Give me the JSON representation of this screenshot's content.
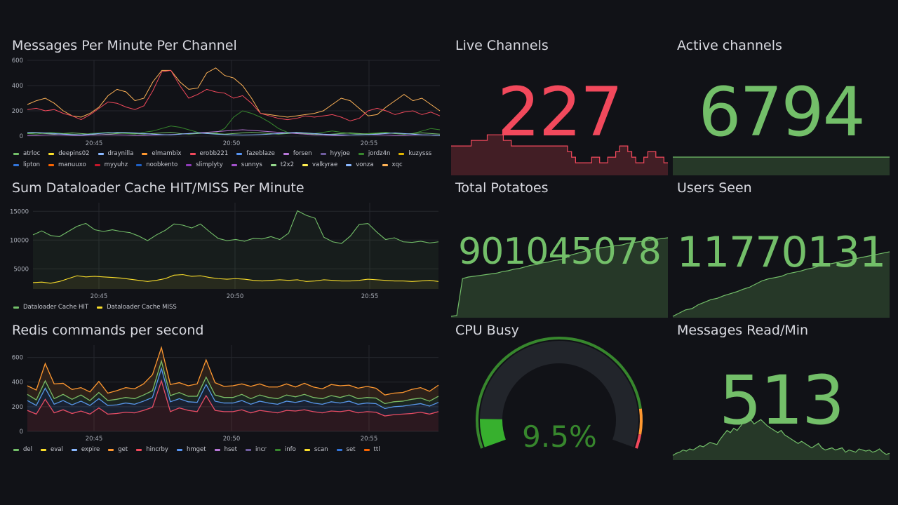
{
  "colors": {
    "green": "#73bf69",
    "red": "#f2495c",
    "yellow": "#fade2a",
    "blue": "#8ab8ff",
    "orange": "#ff9830",
    "grid": "#25272d",
    "text": "#ccccdc",
    "bg": "#111217"
  },
  "messages_panel": {
    "title": "Messages Per Minute Per Channel",
    "legend": [
      {
        "label": "atrloc",
        "color": "#73bf69"
      },
      {
        "label": "deepins02",
        "color": "#fade2a"
      },
      {
        "label": "draynilla",
        "color": "#8ab8ff"
      },
      {
        "label": "elmambix",
        "color": "#ff9830"
      },
      {
        "label": "erobb221",
        "color": "#f2495c"
      },
      {
        "label": "fazeblaze",
        "color": "#5794f2"
      },
      {
        "label": "forsen",
        "color": "#b877d9"
      },
      {
        "label": "hyyjoe",
        "color": "#705da0"
      },
      {
        "label": "jordz4n",
        "color": "#37872d"
      },
      {
        "label": "kuzysss",
        "color": "#e0b400"
      },
      {
        "label": "lipton",
        "color": "#3274d9"
      },
      {
        "label": "manuuxo",
        "color": "#fa6400"
      },
      {
        "label": "myyuhz",
        "color": "#c4162a"
      },
      {
        "label": "noobkento",
        "color": "#1f60c4"
      },
      {
        "label": "slimplyty",
        "color": "#8f3bb8"
      },
      {
        "label": "sunnys",
        "color": "#a352cc"
      },
      {
        "label": "t2x2",
        "color": "#96d98d"
      },
      {
        "label": "valkyrae",
        "color": "#ffee52"
      },
      {
        "label": "vonza",
        "color": "#8ab8ff"
      },
      {
        "label": "xqc",
        "color": "#ffb357"
      }
    ],
    "chart_data": {
      "type": "line",
      "title": "Messages Per Minute Per Channel",
      "x_ticks": [
        "20:45",
        "20:50",
        "20:55"
      ],
      "y_ticks": [
        "600",
        "400",
        "200",
        "0"
      ],
      "ylim": [
        0,
        600
      ],
      "series": [
        {
          "name": "xqc",
          "color": "#ffb357",
          "values": [
            250,
            280,
            300,
            260,
            200,
            160,
            150,
            180,
            230,
            320,
            370,
            350,
            280,
            300,
            430,
            520,
            520,
            430,
            370,
            380,
            500,
            540,
            480,
            460,
            400,
            300,
            180,
            170,
            160,
            150,
            160,
            170,
            180,
            200,
            250,
            300,
            280,
            220,
            160,
            170,
            230,
            280,
            330,
            280,
            300,
            250,
            200
          ]
        },
        {
          "name": "erobb221",
          "color": "#f2495c",
          "values": [
            210,
            220,
            200,
            210,
            180,
            160,
            130,
            170,
            220,
            270,
            260,
            230,
            210,
            240,
            360,
            510,
            520,
            400,
            300,
            330,
            370,
            350,
            340,
            300,
            320,
            260,
            180,
            160,
            140,
            130,
            140,
            160,
            150,
            160,
            170,
            150,
            120,
            140,
            200,
            220,
            200,
            170,
            190,
            200,
            170,
            190,
            160
          ]
        },
        {
          "name": "jordz4n",
          "color": "#37872d",
          "values": [
            20,
            15,
            25,
            30,
            20,
            15,
            10,
            20,
            25,
            30,
            25,
            20,
            15,
            30,
            40,
            60,
            80,
            70,
            50,
            30,
            20,
            25,
            60,
            150,
            200,
            180,
            150,
            110,
            60,
            30,
            20,
            15,
            20,
            30,
            40,
            30,
            20,
            15,
            20,
            25,
            30,
            20,
            15,
            20,
            40,
            60,
            50
          ]
        },
        {
          "name": "atrloc",
          "color": "#73bf69",
          "values": [
            20,
            25,
            20,
            15,
            20,
            25,
            20,
            15,
            10,
            15,
            20,
            25,
            20,
            15,
            20,
            25,
            30,
            20,
            15,
            20,
            25,
            20,
            15,
            20,
            25,
            30,
            25,
            20,
            15,
            20,
            25,
            20,
            15,
            10,
            15,
            20,
            25,
            20,
            15,
            20,
            25,
            20,
            15,
            20,
            25,
            20,
            15
          ]
        },
        {
          "name": "forsen",
          "color": "#b877d9",
          "values": [
            5,
            5,
            8,
            10,
            8,
            5,
            5,
            8,
            10,
            12,
            10,
            8,
            5,
            5,
            8,
            10,
            12,
            15,
            20,
            25,
            30,
            35,
            40,
            45,
            50,
            45,
            40,
            35,
            30,
            25,
            20,
            15,
            10,
            8,
            5,
            5,
            8,
            10,
            12,
            10,
            8,
            5,
            5,
            8,
            10,
            8,
            5
          ]
        },
        {
          "name": "draynilla",
          "color": "#8ab8ff",
          "values": [
            30,
            28,
            25,
            20,
            15,
            12,
            10,
            15,
            20,
            25,
            30,
            28,
            25,
            20,
            15,
            12,
            10,
            15,
            20,
            25,
            20,
            15,
            12,
            10,
            8,
            10,
            12,
            15,
            20,
            25,
            30,
            25,
            20,
            15,
            12,
            10,
            8,
            10,
            12,
            15,
            20,
            25,
            20,
            15,
            10,
            8,
            5
          ]
        }
      ]
    }
  },
  "cache_panel": {
    "title": "Sum Dataloader Cache HIT/MISS Per Minute",
    "legend": [
      {
        "label": "Dataloader Cache HIT",
        "color": "#73bf69"
      },
      {
        "label": "Dataloader Cache MISS",
        "color": "#fade2a"
      }
    ],
    "chart_data": {
      "type": "area",
      "title": "Sum Dataloader Cache HIT/MISS Per Minute",
      "x_ticks": [
        "20:45",
        "20:50",
        "20:55"
      ],
      "y_ticks": [
        "15000",
        "10000",
        "5000"
      ],
      "ylim": [
        1500,
        16500
      ],
      "series": [
        {
          "name": "Dataloader Cache HIT",
          "color": "#73bf69",
          "values": [
            10900,
            11600,
            10800,
            10600,
            11500,
            12400,
            12900,
            11800,
            11500,
            11800,
            11500,
            11300,
            10700,
            9900,
            10900,
            11700,
            12800,
            12600,
            12100,
            12800,
            11500,
            10300,
            9900,
            10100,
            9800,
            10300,
            10200,
            10600,
            10100,
            11200,
            15100,
            14300,
            13800,
            10500,
            9700,
            9400,
            10700,
            12700,
            12900,
            11400,
            10100,
            10400,
            9700,
            9600,
            9800,
            9500,
            9700
          ]
        },
        {
          "name": "Dataloader Cache MISS",
          "color": "#fade2a",
          "values": [
            2600,
            2700,
            2500,
            2800,
            3300,
            3800,
            3600,
            3700,
            3600,
            3500,
            3400,
            3200,
            3000,
            2800,
            3000,
            3300,
            3900,
            4000,
            3700,
            3800,
            3500,
            3300,
            3200,
            3300,
            3200,
            3000,
            2900,
            3000,
            3100,
            3000,
            3100,
            2800,
            2900,
            3100,
            3000,
            2900,
            2900,
            3000,
            3200,
            3100,
            3000,
            2900,
            2900,
            2800,
            2900,
            3000,
            2800
          ]
        }
      ]
    }
  },
  "redis_panel": {
    "title": "Redis commands per second",
    "legend": [
      {
        "label": "del",
        "color": "#73bf69"
      },
      {
        "label": "eval",
        "color": "#fade2a"
      },
      {
        "label": "expire",
        "color": "#8ab8ff"
      },
      {
        "label": "get",
        "color": "#ff9830"
      },
      {
        "label": "hincrby",
        "color": "#f2495c"
      },
      {
        "label": "hmget",
        "color": "#5794f2"
      },
      {
        "label": "hset",
        "color": "#b877d9"
      },
      {
        "label": "incr",
        "color": "#705da0"
      },
      {
        "label": "info",
        "color": "#37872d"
      },
      {
        "label": "scan",
        "color": "#fade2a"
      },
      {
        "label": "set",
        "color": "#3274d9"
      },
      {
        "label": "ttl",
        "color": "#fa6400"
      }
    ],
    "chart_data": {
      "type": "area",
      "title": "Redis commands per second",
      "stacked": true,
      "x_ticks": [
        "20:45",
        "20:50",
        "20:55"
      ],
      "y_ticks": [
        "600",
        "400",
        "200",
        "0"
      ],
      "ylim": [
        0,
        700
      ],
      "series": [
        {
          "name": "hincrby",
          "color": "#f2495c",
          "values": [
            170,
            140,
            260,
            150,
            175,
            145,
            165,
            140,
            190,
            140,
            145,
            155,
            150,
            170,
            195,
            410,
            160,
            190,
            170,
            160,
            290,
            170,
            160,
            160,
            175,
            150,
            170,
            160,
            150,
            170,
            165,
            175,
            160,
            150,
            165,
            160,
            170,
            150,
            160,
            155,
            125,
            135,
            140,
            145,
            155,
            140,
            160
          ]
        },
        {
          "name": "hmget",
          "color": "#5794f2",
          "values": [
            80,
            70,
            90,
            70,
            75,
            70,
            80,
            70,
            75,
            70,
            70,
            75,
            70,
            75,
            80,
            100,
            80,
            75,
            70,
            75,
            90,
            75,
            70,
            70,
            75,
            70,
            75,
            70,
            70,
            75,
            70,
            75,
            70,
            70,
            75,
            70,
            75,
            70,
            70,
            70,
            60,
            65,
            65,
            70,
            70,
            65,
            75
          ]
        },
        {
          "name": "del",
          "color": "#73bf69",
          "values": [
            50,
            45,
            60,
            45,
            50,
            45,
            50,
            40,
            50,
            40,
            45,
            45,
            45,
            50,
            55,
            60,
            50,
            50,
            45,
            50,
            60,
            50,
            45,
            45,
            50,
            45,
            50,
            45,
            45,
            50,
            45,
            50,
            45,
            45,
            50,
            45,
            50,
            45,
            45,
            45,
            40,
            40,
            40,
            45,
            45,
            40,
            50
          ]
        },
        {
          "name": "get",
          "color": "#ff9830",
          "values": [
            70,
            80,
            140,
            120,
            90,
            80,
            60,
            70,
            90,
            60,
            70,
            80,
            80,
            90,
            130,
            110,
            90,
            80,
            85,
            100,
            140,
            100,
            90,
            95,
            85,
            100,
            90,
            85,
            95,
            90,
            80,
            90,
            85,
            80,
            90,
            95,
            80,
            85,
            90,
            80,
            70,
            70,
            70,
            80,
            85,
            80,
            90
          ]
        }
      ]
    }
  },
  "live_channels": {
    "title": "Live Channels",
    "value": "227",
    "chart_data": {
      "type": "area",
      "series": [
        {
          "name": "Live Channels",
          "values": [
            5,
            5,
            5,
            5,
            5,
            6,
            6,
            6,
            6,
            7,
            7,
            7,
            7,
            6,
            6,
            5,
            5,
            5,
            5,
            5,
            5,
            5,
            5,
            5,
            5,
            5,
            5,
            5,
            5,
            4,
            3,
            2,
            2,
            2,
            2,
            3,
            3,
            2,
            2,
            3,
            3,
            4,
            5,
            5,
            4,
            3,
            2,
            2,
            3,
            4,
            4,
            3,
            3,
            2,
            2
          ]
        }
      ]
    }
  },
  "active_channels": {
    "title": "Active channels",
    "value": "6794",
    "chart_data": {
      "type": "area",
      "series": [
        {
          "name": "Active channels",
          "values": [
            6794,
            6794,
            6794,
            6794,
            6794,
            6794,
            6794,
            6794,
            6794,
            6794
          ]
        }
      ]
    }
  },
  "total_potatoes": {
    "title": "Total Potatoes",
    "value": "901045078",
    "chart_data": {
      "type": "area",
      "series": [
        {
          "name": "Total Potatoes",
          "values": [
            0,
            1,
            48,
            50,
            51,
            52,
            53,
            54,
            55,
            57,
            58,
            60,
            61,
            63,
            65,
            66,
            68,
            69,
            71,
            72,
            74,
            78,
            80,
            82,
            84,
            86,
            87,
            88,
            89,
            90,
            91,
            93,
            94,
            95,
            96,
            97,
            98,
            99,
            100
          ]
        }
      ]
    }
  },
  "users_seen": {
    "title": "Users Seen",
    "value": "11770131",
    "chart_data": {
      "type": "area",
      "series": [
        {
          "name": "Users Seen",
          "values": [
            0,
            5,
            10,
            12,
            18,
            22,
            26,
            28,
            32,
            35,
            38,
            42,
            45,
            50,
            55,
            58,
            60,
            62,
            66,
            68,
            70,
            73,
            75,
            78,
            80,
            82,
            84,
            86,
            88,
            90,
            92,
            94,
            96,
            98,
            100
          ]
        }
      ]
    }
  },
  "cpu_busy": {
    "title": "CPU Busy",
    "value": "9.5%",
    "percent": 9.5
  },
  "messages_read": {
    "title": "Messages Read/Min",
    "value": "513",
    "chart_data": {
      "type": "area",
      "series": [
        {
          "name": "Messages Read/Min",
          "values": [
            3,
            5,
            6,
            8,
            7,
            9,
            8,
            10,
            12,
            11,
            13,
            15,
            14,
            13,
            18,
            22,
            26,
            24,
            28,
            26,
            30,
            34,
            38,
            36,
            32,
            34,
            36,
            33,
            30,
            28,
            26,
            24,
            26,
            22,
            20,
            18,
            16,
            14,
            16,
            14,
            12,
            10,
            12,
            14,
            10,
            8,
            9,
            10,
            8,
            9,
            10,
            6,
            8,
            7,
            6,
            9,
            8,
            7,
            8,
            6,
            7,
            9,
            6,
            4,
            5
          ]
        }
      ]
    }
  }
}
